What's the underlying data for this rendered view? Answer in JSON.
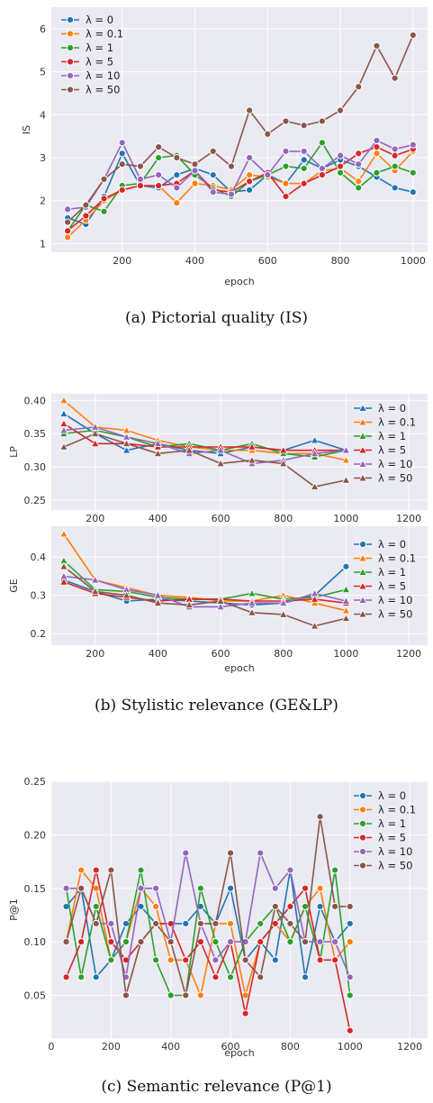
{
  "colors": {
    "plot_bg": "#eaeaf2",
    "grid": "#ffffff",
    "series": [
      "#1f77b4",
      "#ff7f0e",
      "#2ca02c",
      "#d62728",
      "#9467bd",
      "#8c564b"
    ]
  },
  "captions": {
    "a": "(a)  Pictorial quality (IS)",
    "b": "(b)  Stylistic relevance (GE&LP)",
    "c": "(c)  Semantic relevance (P@1)"
  },
  "chart_data": [
    {
      "id": "is",
      "type": "line",
      "marker": "circle",
      "xlabel": "epoch",
      "ylabel": "IS",
      "xlim": [
        5,
        1040
      ],
      "ylim": [
        0.8,
        6.5
      ],
      "xticks": [
        200,
        400,
        600,
        800,
        1000
      ],
      "yticks": [
        1,
        2,
        3,
        4,
        5,
        6
      ],
      "legend": "top-left",
      "grid": true,
      "x": [
        50,
        100,
        150,
        200,
        250,
        300,
        350,
        400,
        450,
        500,
        550,
        600,
        650,
        700,
        750,
        800,
        850,
        900,
        950,
        1000
      ],
      "series": [
        {
          "name": "λ = 0",
          "values": [
            1.6,
            1.45,
            2.1,
            3.1,
            2.35,
            2.3,
            2.6,
            2.75,
            2.6,
            2.2,
            2.25,
            2.6,
            2.4,
            2.95,
            2.75,
            2.95,
            2.8,
            2.55,
            2.3,
            2.2
          ]
        },
        {
          "name": "λ = 0.1",
          "values": [
            1.15,
            1.55,
            2.0,
            2.25,
            2.35,
            2.35,
            1.95,
            2.4,
            2.35,
            2.25,
            2.6,
            2.55,
            2.4,
            2.4,
            2.7,
            2.75,
            2.45,
            3.1,
            2.7,
            3.15
          ]
        },
        {
          "name": "λ = 1",
          "values": [
            1.3,
            1.9,
            1.75,
            2.35,
            2.4,
            3.0,
            3.05,
            2.6,
            2.3,
            2.1,
            2.45,
            2.6,
            2.8,
            2.75,
            3.35,
            2.65,
            2.3,
            2.65,
            2.8,
            2.65
          ]
        },
        {
          "name": "λ = 5",
          "values": [
            1.3,
            1.65,
            2.05,
            2.25,
            2.35,
            2.35,
            2.4,
            2.7,
            2.25,
            2.2,
            2.45,
            2.65,
            2.1,
            2.4,
            2.6,
            2.8,
            3.1,
            3.25,
            3.05,
            3.2
          ]
        },
        {
          "name": "λ = 10",
          "values": [
            1.8,
            1.85,
            2.5,
            3.35,
            2.5,
            2.6,
            2.3,
            2.7,
            2.2,
            2.15,
            3.0,
            2.6,
            3.15,
            3.15,
            2.75,
            3.05,
            2.85,
            3.4,
            3.2,
            3.3
          ]
        },
        {
          "name": "λ = 50",
          "values": [
            1.5,
            1.9,
            2.5,
            2.85,
            2.8,
            3.25,
            3.0,
            2.85,
            3.15,
            2.8,
            4.1,
            3.55,
            3.85,
            3.75,
            3.85,
            4.1,
            4.65,
            5.6,
            4.85,
            5.85
          ]
        }
      ]
    },
    {
      "id": "lp",
      "type": "line",
      "marker": "triangle",
      "xlabel": "",
      "ylabel": "LP",
      "xlim": [
        60,
        1260
      ],
      "ylim": [
        0.235,
        0.41
      ],
      "xticks": [
        200,
        400,
        600,
        800,
        1000,
        1200
      ],
      "yticks": [
        0.25,
        0.3,
        0.35,
        0.4
      ],
      "ytick_labels": [
        "0.25",
        "0.30",
        "0.35",
        "0.40"
      ],
      "legend": "right",
      "grid": true,
      "x": [
        100,
        200,
        300,
        400,
        500,
        600,
        700,
        800,
        900,
        1000
      ],
      "series": [
        {
          "name": "λ = 0",
          "values": [
            0.38,
            0.35,
            0.325,
            0.335,
            0.325,
            0.32,
            0.33,
            0.325,
            0.34,
            0.325
          ]
        },
        {
          "name": "λ = 0.1",
          "values": [
            0.4,
            0.36,
            0.355,
            0.34,
            0.33,
            0.325,
            0.325,
            0.32,
            0.32,
            0.31
          ]
        },
        {
          "name": "λ = 1",
          "values": [
            0.35,
            0.355,
            0.345,
            0.33,
            0.335,
            0.325,
            0.335,
            0.32,
            0.315,
            0.325
          ]
        },
        {
          "name": "λ = 5",
          "values": [
            0.365,
            0.335,
            0.335,
            0.33,
            0.33,
            0.33,
            0.33,
            0.325,
            0.325,
            0.325
          ]
        },
        {
          "name": "λ = 10",
          "values": [
            0.355,
            0.36,
            0.345,
            0.335,
            0.32,
            0.325,
            0.305,
            0.31,
            0.32,
            0.325
          ]
        },
        {
          "name": "λ = 50",
          "values": [
            0.33,
            0.35,
            0.335,
            0.32,
            0.325,
            0.305,
            0.31,
            0.305,
            0.27,
            0.28
          ]
        }
      ]
    },
    {
      "id": "ge",
      "type": "line",
      "marker": "mixed",
      "xlabel": "epoch",
      "ylabel": "GE",
      "xlim": [
        60,
        1260
      ],
      "ylim": [
        0.17,
        0.48
      ],
      "xticks": [
        200,
        400,
        600,
        800,
        1000,
        1200
      ],
      "yticks": [
        0.2,
        0.3,
        0.4
      ],
      "ytick_labels": [
        "0.2",
        "0.3",
        "0.4"
      ],
      "legend": "right",
      "grid": true,
      "x": [
        100,
        200,
        300,
        400,
        500,
        600,
        700,
        800,
        900,
        1000
      ],
      "series": [
        {
          "name": "λ = 0",
          "values": [
            0.34,
            0.31,
            0.285,
            0.29,
            0.285,
            0.28,
            0.275,
            0.28,
            0.3,
            0.375
          ]
        },
        {
          "name": "λ = 0.1",
          "values": [
            0.46,
            0.34,
            0.32,
            0.3,
            0.295,
            0.285,
            0.285,
            0.3,
            0.28,
            0.26
          ]
        },
        {
          "name": "λ = 1",
          "values": [
            0.39,
            0.315,
            0.31,
            0.295,
            0.29,
            0.29,
            0.305,
            0.29,
            0.295,
            0.315
          ]
        },
        {
          "name": "λ = 5",
          "values": [
            0.335,
            0.305,
            0.295,
            0.285,
            0.29,
            0.29,
            0.285,
            0.285,
            0.29,
            0.28
          ]
        },
        {
          "name": "λ = 10",
          "values": [
            0.35,
            0.34,
            0.315,
            0.3,
            0.27,
            0.27,
            0.28,
            0.28,
            0.305,
            0.285
          ]
        },
        {
          "name": "λ = 50",
          "values": [
            0.375,
            0.31,
            0.3,
            0.28,
            0.275,
            0.285,
            0.255,
            0.25,
            0.22,
            0.24
          ]
        }
      ]
    },
    {
      "id": "p1",
      "type": "line",
      "marker": "circle",
      "xlabel": "epoch",
      "ylabel": "P@1",
      "xlim": [
        0,
        1260
      ],
      "ylim": [
        0.01,
        0.25
      ],
      "xticks": [
        0,
        200,
        400,
        600,
        800,
        1000,
        1200
      ],
      "yticks": [
        0.05,
        0.1,
        0.15,
        0.2,
        0.25
      ],
      "ytick_labels": [
        "0.05",
        "0.10",
        "0.15",
        "0.20",
        "0.25"
      ],
      "legend": "top-right",
      "grid": true,
      "x": [
        50,
        100,
        150,
        200,
        250,
        300,
        350,
        400,
        450,
        500,
        550,
        600,
        650,
        700,
        750,
        800,
        850,
        900,
        950,
        1000
      ],
      "series": [
        {
          "name": "λ = 0",
          "values": [
            0.133,
            0.15,
            0.067,
            0.083,
            0.117,
            0.133,
            0.117,
            0.117,
            0.117,
            0.133,
            0.117,
            0.15,
            0.083,
            0.1,
            0.083,
            0.167,
            0.067,
            0.133,
            0.1,
            0.117
          ]
        },
        {
          "name": "λ = 0.1",
          "values": [
            0.1,
            0.167,
            0.15,
            0.083,
            0.1,
            0.15,
            0.133,
            0.083,
            0.083,
            0.05,
            0.117,
            0.117,
            0.05,
            0.1,
            0.117,
            0.1,
            0.133,
            0.15,
            0.083,
            0.1
          ]
        },
        {
          "name": "λ = 1",
          "values": [
            0.15,
            0.067,
            0.133,
            0.083,
            0.1,
            0.167,
            0.083,
            0.05,
            0.05,
            0.15,
            0.1,
            0.067,
            0.1,
            0.117,
            0.133,
            0.1,
            0.133,
            0.083,
            0.167,
            0.05
          ]
        },
        {
          "name": "λ = 5",
          "values": [
            0.067,
            0.1,
            0.167,
            0.1,
            0.083,
            0.1,
            0.117,
            0.117,
            0.083,
            0.1,
            0.067,
            0.1,
            0.033,
            0.1,
            0.117,
            0.133,
            0.15,
            0.083,
            0.083,
            0.017
          ]
        },
        {
          "name": "λ = 10",
          "values": [
            0.15,
            0.15,
            0.117,
            0.117,
            0.067,
            0.15,
            0.15,
            0.1,
            0.183,
            0.117,
            0.083,
            0.1,
            0.1,
            0.183,
            0.15,
            0.167,
            0.1,
            0.1,
            0.1,
            0.067
          ]
        },
        {
          "name": "λ = 50",
          "values": [
            0.1,
            0.15,
            0.117,
            0.167,
            0.05,
            0.1,
            0.117,
            0.1,
            0.05,
            0.117,
            0.117,
            0.183,
            0.083,
            0.067,
            0.133,
            0.117,
            0.1,
            0.217,
            0.133,
            0.133
          ]
        }
      ]
    }
  ]
}
